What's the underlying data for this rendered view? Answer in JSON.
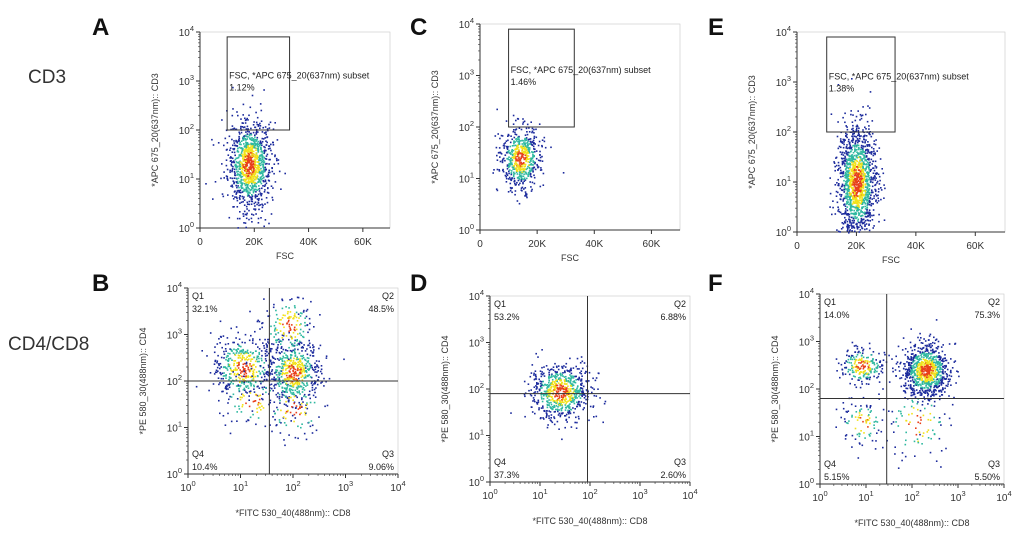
{
  "colors": {
    "background": "#ffffff",
    "axis": "#333333",
    "gate": "#333333",
    "dot_low": "#1b2a9c",
    "dot_mid": "#2fb8a0",
    "dot_high": "#f2e21a",
    "dot_peak": "#e8401c"
  },
  "row_labels": {
    "cd3": "CD3",
    "cd4cd8": "CD4/CD8"
  },
  "scatter": {
    "x_label": "FSC",
    "y_label": "*APC 675_20(637nm):: CD3",
    "x_ticks": [
      "0",
      "20K",
      "40K",
      "60K"
    ],
    "x_tick_values": [
      0,
      20000,
      40000,
      60000
    ],
    "y_ticks": [
      {
        "base": "10",
        "exp": "0"
      },
      {
        "base": "10",
        "exp": "1"
      },
      {
        "base": "10",
        "exp": "2"
      },
      {
        "base": "10",
        "exp": "3"
      },
      {
        "base": "10",
        "exp": "4"
      }
    ],
    "gate_label": "FSC, *APC 675_20(637nm) subset"
  },
  "quadrant": {
    "x_label": "*FITC 530_40(488nm):: CD8",
    "y_label": "*PE 580_30(488nm):: CD4",
    "ticks": [
      {
        "base": "10",
        "exp": "0"
      },
      {
        "base": "10",
        "exp": "1"
      },
      {
        "base": "10",
        "exp": "2"
      },
      {
        "base": "10",
        "exp": "3"
      },
      {
        "base": "10",
        "exp": "4"
      }
    ],
    "q_labels": [
      "Q1",
      "Q2",
      "Q3",
      "Q4"
    ]
  },
  "chart_data": [
    {
      "panel": "A",
      "type": "scatter",
      "x_range": [
        0,
        70000
      ],
      "y_range_log": [
        0,
        4
      ],
      "gate": {
        "x": [
          10000,
          33000
        ],
        "y_log": [
          2,
          3.9
        ]
      },
      "gate_percent": "1.12%",
      "clusters": [
        {
          "cx": 18000,
          "cy_log": 1.3,
          "sx": 4000,
          "sy_log": 0.45,
          "n": 1100
        }
      ]
    },
    {
      "panel": "B",
      "type": "scatter",
      "x_range_log": [
        0,
        4
      ],
      "y_range_log": [
        0,
        4
      ],
      "divider": {
        "x_log": 1.55,
        "y_log": 2.0
      },
      "quadrants": {
        "Q1": "32.1%",
        "Q2": "48.5%",
        "Q3": "9.06%",
        "Q4": "10.4%"
      },
      "clusters": [
        {
          "cx_log": 1.05,
          "cy_log": 2.3,
          "sx_log": 0.3,
          "sy_log": 0.35,
          "n": 420
        },
        {
          "cx_log": 2.0,
          "cy_log": 2.2,
          "sx_log": 0.25,
          "sy_log": 0.35,
          "n": 520
        },
        {
          "cx_log": 1.9,
          "cy_log": 3.2,
          "sx_log": 0.25,
          "sy_log": 0.35,
          "n": 160
        },
        {
          "cx_log": 1.2,
          "cy_log": 1.6,
          "sx_log": 0.3,
          "sy_log": 0.3,
          "n": 90
        },
        {
          "cx_log": 2.0,
          "cy_log": 1.4,
          "sx_log": 0.3,
          "sy_log": 0.35,
          "n": 90
        }
      ]
    },
    {
      "panel": "C",
      "type": "scatter",
      "x_range": [
        0,
        70000
      ],
      "y_range_log": [
        0,
        4
      ],
      "gate": {
        "x": [
          10000,
          33000
        ],
        "y_log": [
          2,
          3.9
        ]
      },
      "gate_percent": "1.46%",
      "clusters": [
        {
          "cx": 14000,
          "cy_log": 1.4,
          "sx": 3500,
          "sy_log": 0.3,
          "n": 600
        }
      ]
    },
    {
      "panel": "D",
      "type": "scatter",
      "x_range_log": [
        0,
        4
      ],
      "y_range_log": [
        0,
        4
      ],
      "divider": {
        "x_log": 1.95,
        "y_log": 1.9
      },
      "quadrants": {
        "Q1": "53.2%",
        "Q2": "6.88%",
        "Q3": "2.60%",
        "Q4": "37.3%"
      },
      "clusters": [
        {
          "cx_log": 1.4,
          "cy_log": 1.95,
          "sx_log": 0.3,
          "sy_log": 0.3,
          "n": 700
        }
      ]
    },
    {
      "panel": "E",
      "type": "scatter",
      "x_range": [
        0,
        70000
      ],
      "y_range_log": [
        0,
        4
      ],
      "gate": {
        "x": [
          10000,
          33000
        ],
        "y_log": [
          2,
          3.9
        ]
      },
      "gate_percent": "1.38%",
      "clusters": [
        {
          "cx": 20000,
          "cy_log": 1.0,
          "sx": 3200,
          "sy_log": 0.55,
          "n": 1400
        }
      ]
    },
    {
      "panel": "F",
      "type": "scatter",
      "x_range_log": [
        0,
        4
      ],
      "y_range_log": [
        0,
        4
      ],
      "divider": {
        "x_log": 1.45,
        "y_log": 1.8
      },
      "quadrants": {
        "Q1": "14.0%",
        "Q2": "75.3%",
        "Q3": "5.50%",
        "Q4": "5.15%"
      },
      "clusters": [
        {
          "cx_log": 2.3,
          "cy_log": 2.4,
          "sx_log": 0.25,
          "sy_log": 0.28,
          "n": 900
        },
        {
          "cx_log": 0.9,
          "cy_log": 2.5,
          "sx_log": 0.25,
          "sy_log": 0.2,
          "n": 220
        },
        {
          "cx_log": 0.9,
          "cy_log": 1.3,
          "sx_log": 0.25,
          "sy_log": 0.25,
          "n": 90
        },
        {
          "cx_log": 2.1,
          "cy_log": 1.3,
          "sx_log": 0.35,
          "sy_log": 0.4,
          "n": 90
        }
      ]
    }
  ]
}
